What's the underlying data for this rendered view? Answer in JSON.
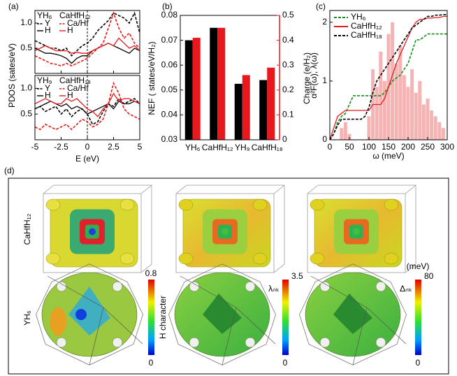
{
  "chart_data": [
    {
      "type": "line",
      "label": "(a)",
      "xlabel": "E (eV)",
      "ylabel": "PDOS (sates/eV)",
      "xlim": [
        -5,
        5
      ],
      "xticks": [
        -5,
        -2.5,
        0,
        2.5,
        5
      ],
      "vline": 0,
      "x": [
        -5,
        -4.5,
        -4,
        -3.5,
        -3,
        -2.5,
        -2,
        -1.5,
        -1,
        -0.5,
        0,
        0.5,
        1,
        1.5,
        2,
        2.5,
        3,
        3.5,
        4,
        4.5,
        5
      ],
      "subplots": [
        {
          "legend_title": [
            "YH₆",
            "CaHfH₁₂"
          ],
          "ylim": [
            0,
            1.25
          ],
          "yticks": [
            0.5,
            {
              "value": 1,
              "label": "1.0"
            }
          ],
          "series": [
            {
              "name": "Y",
              "color": "#000000",
              "dash": true,
              "values": [
                0.65,
                0.6,
                0.55,
                0.5,
                0.5,
                0.45,
                0.5,
                0.35,
                0.45,
                0.55,
                0.6,
                0.7,
                0.85,
                0.95,
                1.05,
                1.2,
                1.15,
                1.1,
                1.0,
                1.2,
                0.8
              ]
            },
            {
              "name": "H",
              "color": "#000000",
              "dash": false,
              "values": [
                0.5,
                0.45,
                0.4,
                0.4,
                0.38,
                0.35,
                0.3,
                0.2,
                0.3,
                0.35,
                0.35,
                0.45,
                0.5,
                0.55,
                0.6,
                0.55,
                0.5,
                0.45,
                0.4,
                0.5,
                0.45
              ]
            },
            {
              "name": "Ca/Hf",
              "color": "#e8191c",
              "dash": true,
              "values": [
                0.35,
                0.3,
                0.25,
                0.2,
                0.18,
                0.15,
                0.2,
                0.15,
                0.2,
                0.25,
                0.3,
                0.4,
                0.5,
                0.6,
                0.9,
                1.2,
                0.9,
                0.7,
                0.8,
                0.6,
                0.5
              ]
            },
            {
              "name": "H",
              "color": "#e8191c",
              "dash": false,
              "values": [
                0.45,
                0.5,
                0.55,
                0.5,
                0.45,
                0.45,
                0.45,
                0.4,
                0.42,
                0.4,
                0.4,
                0.45,
                0.5,
                0.55,
                0.6,
                0.55,
                0.7,
                0.6,
                0.5,
                0.55,
                0.45
              ]
            }
          ]
        },
        {
          "legend_title": [
            "YH₉",
            "CaHfH₁₈"
          ],
          "ylim": [
            0,
            1.25
          ],
          "yticks": [
            0.5,
            {
              "value": 1,
              "label": "1.0"
            }
          ],
          "series": [
            {
              "name": "Y",
              "color": "#000000",
              "dash": true,
              "values": [
                0.6,
                0.65,
                0.55,
                0.6,
                0.65,
                0.5,
                0.6,
                0.45,
                0.55,
                0.6,
                0.5,
                0.3,
                0.35,
                0.55,
                0.7,
                0.65,
                0.8,
                0.7,
                0.75,
                0.8,
                0.7
              ]
            },
            {
              "name": "H",
              "color": "#000000",
              "dash": false,
              "values": [
                0.6,
                0.65,
                0.7,
                0.75,
                0.7,
                0.65,
                0.7,
                0.6,
                0.65,
                0.6,
                0.5,
                0.55,
                0.6,
                0.65,
                0.7,
                0.6,
                0.75,
                0.7,
                0.7,
                0.75,
                0.7
              ]
            },
            {
              "name": "Ca/Hf",
              "color": "#e8191c",
              "dash": true,
              "values": [
                0.25,
                0.2,
                0.3,
                0.25,
                0.2,
                0.25,
                0.3,
                0.2,
                0.3,
                0.4,
                0.35,
                0.25,
                0.3,
                0.4,
                0.7,
                1.1,
                0.9,
                0.6,
                0.5,
                0.45,
                0.4
              ]
            },
            {
              "name": "H",
              "color": "#e8191c",
              "dash": false,
              "values": [
                0.7,
                0.75,
                0.8,
                0.75,
                0.7,
                0.7,
                0.8,
                0.75,
                0.8,
                0.7,
                0.6,
                0.55,
                0.45,
                0.6,
                0.7,
                0.9,
                0.75,
                0.8,
                0.8,
                0.75,
                0.7
              ]
            }
          ]
        }
      ]
    },
    {
      "type": "bar",
      "label": "(b)",
      "categories": [
        "YH₆",
        "CaHfH₁₂",
        "YH₉",
        "CaHfH₁₈"
      ],
      "ylabel": "NEF ( states/eV/H₂)",
      "y2label": "Charge (e/H₂)",
      "ylim": [
        0.03,
        0.08
      ],
      "yticks": [
        0.03,
        0.04,
        0.05,
        0.06,
        0.07,
        0.08
      ],
      "y2lim": [
        0,
        0.5
      ],
      "y2ticks": [
        0,
        0.1,
        0.2,
        0.3,
        0.4,
        0.5
      ],
      "y2color": "#e8191c",
      "series": [
        {
          "color": "#000000",
          "values": [
            0.07,
            0.075,
            0.0525,
            0.054
          ]
        },
        {
          "color": "#e8191c",
          "axis": "y2",
          "values": [
            0.41,
            0.45,
            0.26,
            0.29
          ]
        }
      ]
    },
    {
      "type": "line",
      "label": "(c)",
      "xlabel": "ω (meV)",
      "ylabel": "α²F(ω), λ(ω)",
      "xlim": [
        0,
        300
      ],
      "xticks": [
        0,
        50,
        100,
        150,
        200,
        250,
        300
      ],
      "ylim": [
        0,
        2.2
      ],
      "yticks": [
        0,
        1,
        2
      ],
      "x": [
        0,
        10,
        20,
        30,
        40,
        50,
        60,
        70,
        80,
        90,
        100,
        110,
        120,
        130,
        140,
        150,
        160,
        170,
        180,
        190,
        200,
        210,
        220,
        230,
        240,
        250,
        260,
        270,
        280,
        290,
        300
      ],
      "series": [
        {
          "name": "YH₆",
          "color": "#1a8a1a",
          "dash": true,
          "values": [
            0,
            0.1,
            0.3,
            0.4,
            0.45,
            0.6,
            0.75,
            0.75,
            0.75,
            0.75,
            0.75,
            0.75,
            0.75,
            0.75,
            0.8,
            0.9,
            1.0,
            1.05,
            1.1,
            1.2,
            1.3,
            1.5,
            1.7,
            1.7,
            1.75,
            1.8,
            1.8,
            1.8,
            1.8,
            1.8,
            1.8
          ]
        },
        {
          "name": "CaHfH₁₂",
          "color": "#e8191c",
          "dash": false,
          "values": [
            0,
            0.2,
            0.4,
            0.45,
            0.5,
            0.5,
            0.5,
            0.5,
            0.5,
            0.5,
            0.5,
            0.6,
            0.6,
            0.6,
            0.7,
            0.9,
            1.1,
            1.3,
            1.45,
            1.6,
            1.75,
            1.9,
            2.0,
            2.05,
            2.05,
            2.07,
            2.07,
            2.08,
            2.08,
            2.1,
            2.1
          ]
        },
        {
          "name": "CaHfH₁₈",
          "color": "#000000",
          "dash": true,
          "values": [
            0,
            0.1,
            0.25,
            0.35,
            0.35,
            0.35,
            0.35,
            0.35,
            0.35,
            0.4,
            0.55,
            0.8,
            1.0,
            1.1,
            1.2,
            1.3,
            1.4,
            1.5,
            1.6,
            1.7,
            1.8,
            1.9,
            1.95,
            2.0,
            2.05,
            2.1,
            2.1,
            2.12,
            2.12,
            2.13,
            2.13
          ]
        }
      ],
      "spectrum": {
        "color": "#f4a6a6",
        "x": [
          30,
          40,
          50,
          100,
          110,
          120,
          130,
          140,
          150,
          160,
          170,
          180,
          190,
          200,
          210,
          220,
          230,
          240,
          250,
          260,
          270,
          280,
          290
        ],
        "values": [
          0.2,
          0.3,
          0.1,
          0.4,
          1.2,
          0.9,
          1.5,
          1.0,
          1.8,
          2.0,
          1.3,
          1.6,
          1.1,
          0.9,
          1.2,
          0.8,
          1.0,
          0.6,
          0.7,
          0.5,
          0.4,
          0.3,
          0.2
        ]
      }
    }
  ],
  "panel_d": {
    "label": "(d)",
    "row_labels": [
      "CaHfH₁₂",
      "YH₆"
    ],
    "colorbars": [
      {
        "max": "0.8",
        "min": "0",
        "title": "H character"
      },
      {
        "max": "3.5",
        "min": "0",
        "title": "λₙₖ"
      },
      {
        "unit": "(meV)",
        "max": "80",
        "min": "0",
        "title": "Δₙₖ"
      }
    ]
  }
}
